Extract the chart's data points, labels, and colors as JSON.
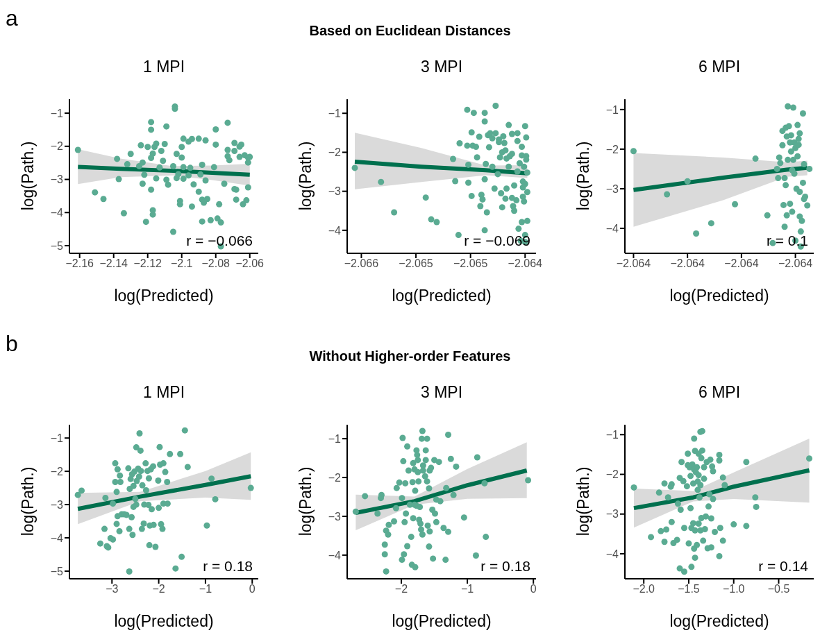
{
  "chart_data": [
    {
      "type": "scatter",
      "title": "1 MPI",
      "xlabel": "log(Predicted)",
      "ylabel": "log(Path.)",
      "annotations": [
        "a",
        "Based on Euclidean Distances",
        "r = −0.066"
      ],
      "xlim": [
        -2.166,
        -2.055
      ],
      "xticks": [
        -2.16,
        -2.14,
        -2.12,
        -2.1,
        -2.08,
        -2.06
      ],
      "ylim": [
        -5.23,
        -0.58
      ],
      "yticks": [
        -5,
        -4,
        -3,
        -2,
        -1
      ],
      "series": [
        {
          "color": "#5aab92",
          "marker": "circle",
          "x": [
            -2.161,
            -2.151,
            -2.146,
            -2.138,
            -2.137,
            -2.134,
            -2.132,
            -2.13,
            -2.125,
            -2.124,
            -2.123,
            -2.123,
            -2.122,
            -2.121,
            -2.12,
            -2.118,
            -2.118,
            -2.118,
            -2.118,
            -2.117,
            -2.117,
            -2.117,
            -2.116,
            -2.115,
            -2.115,
            -2.113,
            -2.112,
            -2.111,
            -2.11,
            -2.109,
            -2.109,
            -2.108,
            -2.105,
            -2.105,
            -2.104,
            -2.104,
            -2.103,
            -2.103,
            -2.102,
            -2.101,
            -2.101,
            -2.1,
            -2.1,
            -2.099,
            -2.099,
            -2.099,
            -2.096,
            -2.095,
            -2.094,
            -2.093,
            -2.094,
            -2.096,
            -2.09,
            -2.09,
            -2.089,
            -2.088,
            -2.088,
            -2.088,
            -2.087,
            -2.086,
            -2.086,
            -2.085,
            -2.083,
            -2.081,
            -2.08,
            -2.08,
            -2.079,
            -2.078,
            -2.077,
            -2.077,
            -2.075,
            -2.073,
            -2.073,
            -2.073,
            -2.072,
            -2.069,
            -2.069,
            -2.069,
            -2.068,
            -2.068,
            -2.066,
            -2.066,
            -2.065,
            -2.064,
            -2.063,
            -2.062,
            -2.061,
            -2.061,
            -2.061,
            -2.06
          ],
          "values": [
            -2.11,
            -3.39,
            -3.59,
            -2.38,
            -2.99,
            -4.02,
            -2.54,
            -2.23,
            -2.6,
            -1.97,
            -2.49,
            -3.13,
            -2.86,
            -4.28,
            -2.02,
            -1.27,
            -1.5,
            -2.35,
            -3.31,
            -3.93,
            -4.06,
            -2.22,
            -2.02,
            -1.92,
            -2.97,
            -2.64,
            -2.14,
            -2.44,
            -1.93,
            -1.4,
            -3.01,
            -3.16,
            -4.58,
            -2.6,
            -0.8,
            -0.87,
            -2.23,
            -2.96,
            -2.84,
            -3.65,
            -3.75,
            -2.02,
            -2.34,
            -2.63,
            -2.98,
            -1.77,
            -2.88,
            -2.65,
            -3.82,
            -3.15,
            -1.78,
            -1.86,
            -1.77,
            -3.37,
            -2.85,
            -2.56,
            -3.61,
            -4.27,
            -3.7,
            -3.03,
            -1.82,
            -3.59,
            -4.23,
            -2.63,
            -1.49,
            -1.95,
            -4.18,
            -3.75,
            -4.3,
            -5.02,
            -3.13,
            -2.11,
            -1.29,
            -2.3,
            -2.42,
            -1.9,
            -2.14,
            -3.29,
            -3.31,
            -3.61,
            -2.01,
            -2.32,
            -1.95,
            -3.75,
            -2.27,
            -3.63,
            -2.34,
            -2.49,
            -3.24,
            -2.32
          ]
        },
        {
          "type": "line",
          "color": "#00704e",
          "x": [
            -2.161,
            -2.136,
            -2.105,
            -2.082,
            -2.06
          ],
          "values": [
            -2.62,
            -2.68,
            -2.74,
            -2.8,
            -2.86
          ],
          "lower": [
            -3.14,
            -2.93,
            -2.88,
            -3.02,
            -3.19
          ],
          "upper": [
            -2.09,
            -2.37,
            -2.6,
            -2.58,
            -2.53
          ]
        }
      ]
    },
    {
      "type": "scatter",
      "title": "3 MPI",
      "xlabel": "log(Predicted)",
      "ylabel": "log(Path.)",
      "annotations": [
        "r = −0.069"
      ],
      "xlim": [
        -2.06563,
        -2.0639
      ],
      "xticks": [
        {
          "value": -2.0655,
          "label": "−2.066"
        },
        {
          "value": -2.065,
          "label": "−2.065"
        },
        {
          "value": -2.0645,
          "label": "−2.065"
        },
        {
          "value": -2.064,
          "label": "−2.064"
        }
      ],
      "ylim": [
        -4.59,
        -0.64
      ],
      "yticks": [
        -4,
        -3,
        -2,
        -1
      ],
      "series": [
        {
          "color": "#5aab92",
          "marker": "circle",
          "x": [
            -2.06556,
            -2.06532,
            -2.0652,
            -2.06491,
            -2.06486,
            -2.06481,
            -2.06466,
            -2.06464,
            -2.06461,
            -2.0646,
            -2.06453,
            -2.06453,
            -2.06452,
            -2.06452,
            -2.06449,
            -2.06449,
            -2.06448,
            -2.06447,
            -2.06445,
            -2.06444,
            -2.06442,
            -2.06441,
            -2.0644,
            -2.06439,
            -2.06437,
            -2.06437,
            -2.06437,
            -2.06437,
            -2.06436,
            -2.06435,
            -2.06434,
            -2.06433,
            -2.06432,
            -2.0643,
            -2.0643,
            -2.06428,
            -2.06427,
            -2.06427,
            -2.06425,
            -2.06424,
            -2.06424,
            -2.06423,
            -2.06422,
            -2.06421,
            -2.06421,
            -2.0642,
            -2.06419,
            -2.06418,
            -2.06418,
            -2.06417,
            -2.06417,
            -2.06415,
            -2.06415,
            -2.06414,
            -2.06412,
            -2.06412,
            -2.06412,
            -2.06411,
            -2.0641,
            -2.0641,
            -2.06408,
            -2.06407,
            -2.06407,
            -2.06407,
            -2.06406,
            -2.06405,
            -2.06404,
            -2.06403,
            -2.06403,
            -2.06403,
            -2.06402,
            -2.06402,
            -2.06402,
            -2.06401,
            -2.06401,
            -2.064,
            -2.064,
            -2.064,
            -2.06399,
            -2.06399,
            -2.06399,
            -2.06398,
            -2.06398,
            -2.06398,
            -2.064
          ],
          "values": [
            -2.4,
            -2.76,
            -3.54,
            -3.16,
            -3.72,
            -3.79,
            -2.17,
            -2.74,
            -4.12,
            -1.77,
            -0.91,
            -1.83,
            -2.32,
            -2.78,
            -1.49,
            -3.12,
            -1.83,
            -0.99,
            -1.86,
            -2.13,
            -1.6,
            -3.38,
            -3.09,
            -3.21,
            -2.69,
            -1.21,
            -0.99,
            -4.0,
            -2.3,
            -3.54,
            -1.56,
            -1.87,
            -1.51,
            -2.37,
            -1.64,
            -2.93,
            -0.81,
            -1.51,
            -2.56,
            -1.74,
            -1.67,
            -2.13,
            -3.05,
            -3.41,
            -2.0,
            -1.59,
            -1.76,
            -3.19,
            -1.95,
            -2.93,
            -2.16,
            -1.3,
            -2.37,
            -2.1,
            -3.17,
            -1.53,
            -2.04,
            -3.38,
            -2.85,
            -3.5,
            -3.23,
            -1.51,
            -2.49,
            -1.71,
            -3.96,
            -2.28,
            -4.27,
            -2.08,
            -3.79,
            -1.86,
            -2.75,
            -3.14,
            -2.9,
            -3.26,
            -2.37,
            -2.81,
            -4.12,
            -1.33,
            -2.1,
            -2.19,
            -1.62,
            -3.02,
            -3.76,
            -2.52,
            -4.3
          ]
        },
        {
          "type": "line",
          "color": "#00704e",
          "x": [
            -2.06556,
            -2.06495,
            -2.06436,
            -2.06398
          ],
          "values": [
            -2.24,
            -2.37,
            -2.46,
            -2.54
          ],
          "lower": [
            -2.95,
            -2.76,
            -2.59,
            -2.66
          ],
          "upper": [
            -1.5,
            -1.89,
            -2.34,
            -2.33
          ]
        }
      ]
    },
    {
      "type": "scatter",
      "title": "6 MPI",
      "xlabel": "log(Predicted)",
      "ylabel": "log(Path.)",
      "annotations": [
        "r = 0.1"
      ],
      "xlim": [
        -2.064008,
        -2.063833
      ],
      "xticks": [
        {
          "value": -2.064,
          "label": "−2.064"
        },
        {
          "value": -2.06395,
          "label": "−2.064"
        },
        {
          "value": -2.0639,
          "label": "−2.064"
        },
        {
          "value": -2.06385,
          "label": "−2.064"
        }
      ],
      "ylim": [
        -4.63,
        -0.74
      ],
      "yticks": [
        -4,
        -3,
        -2,
        -1
      ],
      "series": [
        {
          "color": "#5aab92",
          "marker": "circle",
          "x": [
            -2.064,
            -2.063969,
            -2.06395,
            -2.063942,
            -2.063928,
            -2.063906,
            -2.063887,
            -2.063876,
            -2.063871,
            -2.063865,
            -2.063864,
            -2.063862,
            -2.063862,
            -2.063861,
            -2.06386,
            -2.063859,
            -2.063859,
            -2.063858,
            -2.063858,
            -2.063857,
            -2.063857,
            -2.063856,
            -2.063855,
            -2.063855,
            -2.063854,
            -2.063854,
            -2.063853,
            -2.063853,
            -2.063852,
            -2.063852,
            -2.063851,
            -2.063851,
            -2.06385,
            -2.06385,
            -2.063849,
            -2.063848,
            -2.063848,
            -2.063847,
            -2.063847,
            -2.063846,
            -2.063846,
            -2.063846,
            -2.063845,
            -2.063845,
            -2.063844,
            -2.063843,
            -2.063843,
            -2.063842,
            -2.063842,
            -2.063841,
            -2.063839,
            -2.063837,
            -2.063866,
            -2.06386,
            -2.063867
          ],
          "values": [
            -2.05,
            -3.14,
            -2.81,
            -4.13,
            -3.87,
            -3.39,
            -2.24,
            -3.67,
            -4.37,
            -2.21,
            -2.35,
            -1.54,
            -1.9,
            -3.41,
            -2.73,
            -2.91,
            -1.46,
            -1.68,
            -3.67,
            -0.92,
            -2.27,
            -1.42,
            -1.83,
            -3.38,
            -2.06,
            -1.65,
            -2.53,
            -3.58,
            -2.27,
            -0.95,
            -1.83,
            -2.62,
            -1.97,
            -4.31,
            -3.0,
            -1.39,
            -2.18,
            -1.74,
            -1.89,
            -3.08,
            -1.6,
            -3.7,
            -4.08,
            -4.46,
            -3.81,
            -1.1,
            -2.85,
            -3.26,
            -2.38,
            -3.2,
            -3.42,
            -2.5,
            -2.73,
            -3.96,
            -2.5
          ]
        },
        {
          "type": "line",
          "color": "#00704e",
          "x": [
            -2.064,
            -2.063917,
            -2.063858,
            -2.063839
          ],
          "values": [
            -3.03,
            -2.72,
            -2.52,
            -2.47
          ],
          "lower": [
            -3.96,
            -3.29,
            -2.7,
            -2.66
          ],
          "upper": [
            -2.1,
            -2.21,
            -2.33,
            -2.29
          ]
        }
      ]
    },
    {
      "type": "scatter",
      "title": "1 MPI",
      "xlabel": "log(Predicted)",
      "ylabel": "log(Path.)",
      "annotations": [
        "b",
        "Without Higher-order Features",
        "r = 0.18"
      ],
      "xlim": [
        -3.91,
        0.13
      ],
      "xticks": [
        -3,
        -2,
        -1,
        0
      ],
      "ylim": [
        -5.23,
        -0.6
      ],
      "yticks": [
        -5,
        -4,
        -3,
        -2,
        -1
      ],
      "series": [
        {
          "color": "#5aab92",
          "marker": "circle",
          "x": [
            -3.73,
            -3.65,
            -3.25,
            -3.16,
            -3.14,
            -3.11,
            -3.08,
            -3.03,
            -2.98,
            -2.98,
            -2.93,
            -2.93,
            -2.9,
            -2.9,
            -2.88,
            -2.88,
            -2.84,
            -2.83,
            -2.82,
            -2.79,
            -2.74,
            -2.69,
            -2.65,
            -2.63,
            -2.62,
            -2.6,
            -2.58,
            -2.57,
            -2.56,
            -2.54,
            -2.52,
            -2.5,
            -2.48,
            -2.48,
            -2.47,
            -2.44,
            -2.41,
            -2.39,
            -2.38,
            -2.36,
            -2.35,
            -2.32,
            -2.31,
            -2.28,
            -2.27,
            -2.24,
            -2.22,
            -2.21,
            -2.2,
            -2.19,
            -2.17,
            -2.15,
            -2.12,
            -2.11,
            -2.07,
            -2.01,
            -2.0,
            -1.98,
            -1.97,
            -1.95,
            -1.92,
            -1.9,
            -1.9,
            -1.86,
            -1.81,
            -1.82,
            -1.76,
            -1.54,
            -1.51,
            -1.44,
            -1.64,
            -1.38,
            -2.63,
            -0.97,
            -0.87,
            -0.79,
            -0.03,
            -2.54,
            -2.42
          ],
          "values": [
            -2.71,
            -2.58,
            -4.17,
            -3.73,
            -2.8,
            -4.25,
            -4.29,
            -4.01,
            -4.05,
            -2.97,
            -1.76,
            -2.32,
            -2.62,
            -3.58,
            -3.35,
            -1.94,
            -3.8,
            -2.13,
            -2.32,
            -3.29,
            -3.29,
            -3.31,
            -1.91,
            -3.73,
            -2.53,
            -2.23,
            -3.38,
            -2.09,
            -3.91,
            -2.44,
            -2.01,
            -2.83,
            -1.28,
            -3.0,
            -2.29,
            -1.92,
            -0.86,
            -1.38,
            -1.99,
            -3.73,
            -2.42,
            -3.57,
            -3.0,
            -1.76,
            -2.57,
            -1.99,
            -3.01,
            -2.21,
            -4.22,
            -3.63,
            -1.94,
            -3.14,
            -1.85,
            -3.61,
            -4.27,
            -2.28,
            -3.1,
            -1.27,
            -1.8,
            -3.59,
            -3.73,
            -1.76,
            -2.97,
            -2.02,
            -2.97,
            -2.32,
            -1.48,
            -1.48,
            -4.57,
            -0.77,
            -4.92,
            -1.87,
            -5.01,
            -3.63,
            -2.22,
            -2.84,
            -2.5,
            -3.07,
            -2.16
          ]
        },
        {
          "type": "line",
          "color": "#00704e",
          "x": [
            -3.73,
            -2.4,
            -1.0,
            -0.03
          ],
          "values": [
            -3.13,
            -2.76,
            -2.41,
            -2.15
          ],
          "lower": [
            -3.59,
            -2.9,
            -2.79,
            -2.86
          ],
          "upper": [
            -2.65,
            -2.62,
            -1.99,
            -1.43
          ]
        }
      ]
    },
    {
      "type": "scatter",
      "title": "3 MPI",
      "xlabel": "log(Predicted)",
      "ylabel": "log(Path.)",
      "annotations": [
        "r = 0.18"
      ],
      "xlim": [
        -2.82,
        0.04
      ],
      "xticks": [
        -2,
        -1,
        0
      ],
      "ylim": [
        -4.61,
        -0.64
      ],
      "yticks": [
        -4,
        -3,
        -2,
        -1
      ],
      "series": [
        {
          "color": "#5aab92",
          "marker": "circle",
          "x": [
            -2.69,
            -2.55,
            -2.36,
            -2.31,
            -2.3,
            -2.25,
            -2.25,
            -2.23,
            -2.23,
            -2.2,
            -2.19,
            -2.11,
            -2.08,
            -2.07,
            -2.03,
            -1.99,
            -1.99,
            -1.98,
            -1.97,
            -1.96,
            -1.95,
            -1.94,
            -1.93,
            -1.91,
            -1.91,
            -1.89,
            -1.87,
            -1.85,
            -1.84,
            -1.83,
            -1.82,
            -1.82,
            -1.8,
            -1.79,
            -1.79,
            -1.77,
            -1.77,
            -1.76,
            -1.75,
            -1.75,
            -1.74,
            -1.73,
            -1.72,
            -1.71,
            -1.7,
            -1.69,
            -1.68,
            -1.68,
            -1.67,
            -1.67,
            -1.64,
            -1.63,
            -1.63,
            -1.61,
            -1.61,
            -1.6,
            -1.58,
            -1.57,
            -1.57,
            -1.55,
            -1.53,
            -1.52,
            -1.5,
            -1.49,
            -1.47,
            -1.47,
            -1.43,
            -1.41,
            -1.36,
            -1.33,
            -1.32,
            -1.29,
            -1.29,
            -1.25,
            -1.21,
            -1.17,
            -1.05,
            -0.87,
            -0.85,
            -0.74,
            -0.72,
            -0.08,
            -1.8,
            -1.58
          ],
          "values": [
            -2.88,
            -2.48,
            -2.93,
            -2.53,
            -2.45,
            -3.73,
            -3.98,
            -4.42,
            -3.37,
            -3.47,
            -3.22,
            -3.13,
            -2.79,
            -2.27,
            -2.13,
            -4.12,
            -2.53,
            -0.98,
            -1.58,
            -3.98,
            -3.15,
            -2.15,
            -2.93,
            -1.2,
            -3.77,
            -1.82,
            -2.7,
            -3.53,
            -4.25,
            -2.12,
            -1.63,
            -3.05,
            -1.79,
            -4.31,
            -2.34,
            -2.73,
            -1.3,
            -1.42,
            -1.86,
            -1.55,
            -2.1,
            -3.09,
            -2.76,
            -3.19,
            -3.34,
            -1.0,
            -3.47,
            -0.8,
            -1.82,
            -1.69,
            -1.97,
            -1.55,
            -1.3,
            -1.0,
            -2.1,
            -3.24,
            -3.78,
            -1.82,
            -3.39,
            -1.75,
            -2.83,
            -4.09,
            -1.55,
            -2.93,
            -2.57,
            -3.15,
            -1.6,
            -2.61,
            -3.3,
            -4.12,
            -2.27,
            -3.4,
            -0.9,
            -1.52,
            -2.45,
            -1.72,
            -3.03,
            -4.01,
            -1.48,
            -2.15,
            -3.53,
            -2.07,
            -2.7,
            -2.28
          ]
        },
        {
          "type": "line",
          "color": "#00704e",
          "x": [
            -2.69,
            -1.8,
            -1.0,
            -0.1
          ],
          "values": [
            -2.91,
            -2.61,
            -2.2,
            -1.82
          ],
          "lower": [
            -3.36,
            -2.7,
            -2.55,
            -2.53
          ],
          "upper": [
            -2.44,
            -2.49,
            -1.78,
            -1.09
          ]
        }
      ]
    },
    {
      "type": "scatter",
      "title": "6 MPI",
      "xlabel": "log(Predicted)",
      "ylabel": "log(Path.)",
      "annotations": [
        "r = 0.14"
      ],
      "xlim": [
        -2.21,
        -0.11
      ],
      "xticks": [
        {
          "value": -2,
          "label": "−2.0"
        },
        {
          "value": -1.5,
          "label": "−1.5"
        },
        {
          "value": -1,
          "label": "−1.0"
        },
        {
          "value": -0.5,
          "label": "−0.5"
        }
      ],
      "ylim": [
        -4.63,
        -0.75
      ],
      "yticks": [
        -4,
        -3,
        -2,
        -1
      ],
      "series": [
        {
          "color": "#5aab92",
          "marker": "circle",
          "x": [
            -2.11,
            -1.92,
            -1.83,
            -1.81,
            -1.77,
            -1.77,
            -1.75,
            -1.73,
            -1.7,
            -1.69,
            -1.69,
            -1.67,
            -1.63,
            -1.62,
            -1.6,
            -1.6,
            -1.59,
            -1.58,
            -1.56,
            -1.55,
            -1.55,
            -1.52,
            -1.51,
            -1.51,
            -1.5,
            -1.49,
            -1.48,
            -1.48,
            -1.47,
            -1.47,
            -1.46,
            -1.45,
            -1.45,
            -1.44,
            -1.44,
            -1.44,
            -1.43,
            -1.43,
            -1.43,
            -1.42,
            -1.41,
            -1.41,
            -1.4,
            -1.39,
            -1.39,
            -1.39,
            -1.38,
            -1.37,
            -1.37,
            -1.37,
            -1.36,
            -1.36,
            -1.35,
            -1.35,
            -1.34,
            -1.33,
            -1.33,
            -1.32,
            -1.31,
            -1.3,
            -1.29,
            -1.28,
            -1.27,
            -1.26,
            -1.25,
            -1.25,
            -1.24,
            -1.23,
            -1.23,
            -1.21,
            -1.16,
            -1.16,
            -1.16,
            -1.15,
            -1.12,
            -1.12,
            -1.1,
            -1.0,
            -0.86,
            -0.86,
            -0.76,
            -0.75,
            -0.16,
            -1.4
          ],
          "values": [
            -2.33,
            -3.58,
            -2.46,
            -3.43,
            -2.23,
            -3.7,
            -3.39,
            -2.58,
            -2.31,
            -2.25,
            -3.2,
            -3.73,
            -3.65,
            -2.74,
            -2.09,
            -4.37,
            -2.89,
            -1.69,
            -2.17,
            -4.45,
            -3.35,
            -2.3,
            -1.48,
            -1.77,
            -3.74,
            -1.82,
            -2.04,
            -2.85,
            -3.35,
            -4.33,
            -1.75,
            -2.23,
            -3.23,
            -1.1,
            -3.87,
            -1.88,
            -1.41,
            -4.1,
            -3.41,
            -1.95,
            -3.78,
            -1.82,
            -2.39,
            -3.24,
            -1.48,
            -2.02,
            -2.58,
            -0.93,
            -2.27,
            -3.41,
            -3.1,
            -1.59,
            -1.4,
            -0.91,
            -3.67,
            -1.82,
            -2.11,
            -3.38,
            -3.06,
            -1.69,
            -3.86,
            -2.81,
            -2.5,
            -1.63,
            -3.11,
            -3.84,
            -1.8,
            -1.92,
            -2.62,
            -3.45,
            -1.65,
            -1.51,
            -4.06,
            -3.35,
            -2.08,
            -3.67,
            -2.27,
            -3.26,
            -1.69,
            -3.3,
            -2.58,
            -2.82,
            -1.6,
            -2.18
          ]
        },
        {
          "type": "line",
          "color": "#00704e",
          "x": [
            -2.11,
            -1.45,
            -1.0,
            -0.16
          ],
          "values": [
            -2.85,
            -2.58,
            -2.31,
            -1.9
          ],
          "lower": [
            -3.34,
            -2.68,
            -2.62,
            -2.71
          ],
          "upper": [
            -2.36,
            -2.42,
            -1.95,
            -1.1
          ]
        }
      ]
    }
  ]
}
